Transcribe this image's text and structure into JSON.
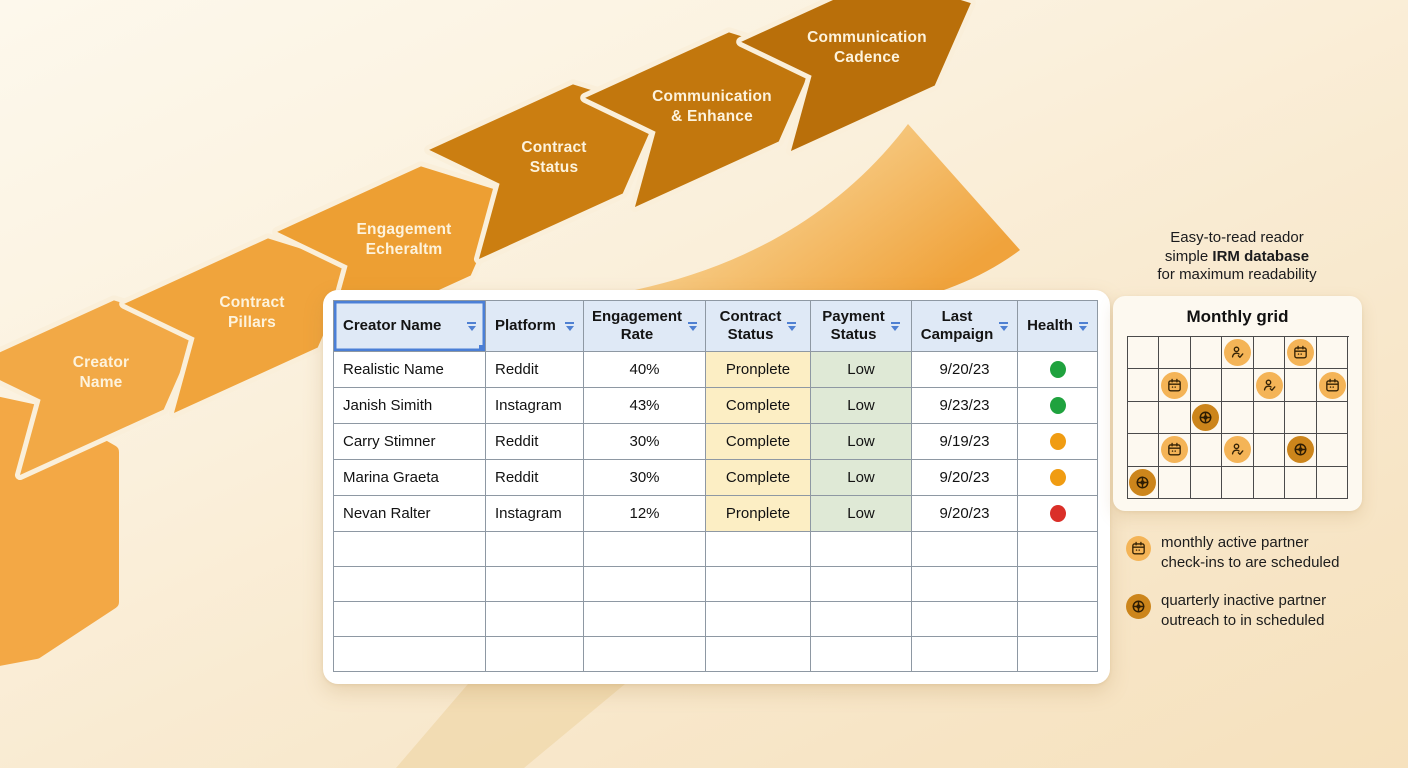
{
  "arrows": {
    "items": [
      {
        "label": "Creator\nName"
      },
      {
        "label": "Contract\nPillars"
      },
      {
        "label": "Engagement\nEcheraltm"
      },
      {
        "label": "Contract\nStatus"
      },
      {
        "label": "Communication\n& Enhance"
      },
      {
        "label": "Communication\nCadence"
      }
    ]
  },
  "table": {
    "columns": [
      {
        "key": "creator",
        "label": "Creator Name"
      },
      {
        "key": "platform",
        "label": "Platform"
      },
      {
        "key": "engagement",
        "label": "Engagement\nRate"
      },
      {
        "key": "contract",
        "label": "Contract\nStatus"
      },
      {
        "key": "payment",
        "label": "Payment\nStatus"
      },
      {
        "key": "last",
        "label": "Last\nCampaign"
      },
      {
        "key": "health",
        "label": "Health"
      }
    ],
    "rows": [
      {
        "creator": "Realistic Name",
        "platform": "Reddit",
        "engagement": "40%",
        "contract": "Pronplete",
        "payment": "Low",
        "last": "9/20/23",
        "health": "green"
      },
      {
        "creator": "Janish Simith",
        "platform": "Instagram",
        "engagement": "43%",
        "contract": "Complete",
        "payment": "Low",
        "last": "9/23/23",
        "health": "green"
      },
      {
        "creator": "Carry Stimner",
        "platform": "Reddit",
        "engagement": "30%",
        "contract": "Complete",
        "payment": "Low",
        "last": "9/19/23",
        "health": "orange"
      },
      {
        "creator": "Marina Graeta",
        "platform": "Reddit",
        "engagement": "30%",
        "contract": "Complete",
        "payment": "Low",
        "last": "9/20/23",
        "health": "orange"
      },
      {
        "creator": "Nevan Ralter",
        "platform": "Instagram",
        "engagement": "12%",
        "contract": "Pronplete",
        "payment": "Low",
        "last": "9/20/23",
        "health": "red"
      }
    ],
    "empty_rows": 4,
    "health_colors": {
      "green": "#1fa23e",
      "orange": "#f09c12",
      "red": "#da2f28"
    },
    "cell_colors": {
      "contract_bg": "#fceec4",
      "payment_bg": "#dfe9d6"
    }
  },
  "note": {
    "line1": "Easy-to-read reador",
    "line2_prefix": "simple ",
    "line2_bold": "IRM database",
    "line3": "for maximum readability"
  },
  "monthly": {
    "title": "Monthly grid",
    "rows": 5,
    "cols": 7,
    "icons": [
      {
        "row": 1,
        "col": 4,
        "type": "person"
      },
      {
        "row": 1,
        "col": 6,
        "type": "calendar"
      },
      {
        "row": 2,
        "col": 2,
        "type": "calendar"
      },
      {
        "row": 2,
        "col": 5,
        "type": "person"
      },
      {
        "row": 2,
        "col": 7,
        "type": "calendar"
      },
      {
        "row": 3,
        "col": 3,
        "type": "globe"
      },
      {
        "row": 4,
        "col": 2,
        "type": "calendar"
      },
      {
        "row": 4,
        "col": 4,
        "type": "person"
      },
      {
        "row": 4,
        "col": 6,
        "type": "globe"
      },
      {
        "row": 5,
        "col": 1,
        "type": "globe"
      }
    ]
  },
  "legend": {
    "items": [
      {
        "icon": "calendar",
        "text": "monthly active partner\ncheck-ins to are scheduled"
      },
      {
        "icon": "globe",
        "text": "quarterly inactive partner\noutreach to in scheduled"
      }
    ]
  },
  "colors": {
    "arrow_light": "#f2a946",
    "arrow_dark": "#b96f0a",
    "header_bg": "#dfe9f6",
    "selection_blue": "#4b7fd6"
  }
}
